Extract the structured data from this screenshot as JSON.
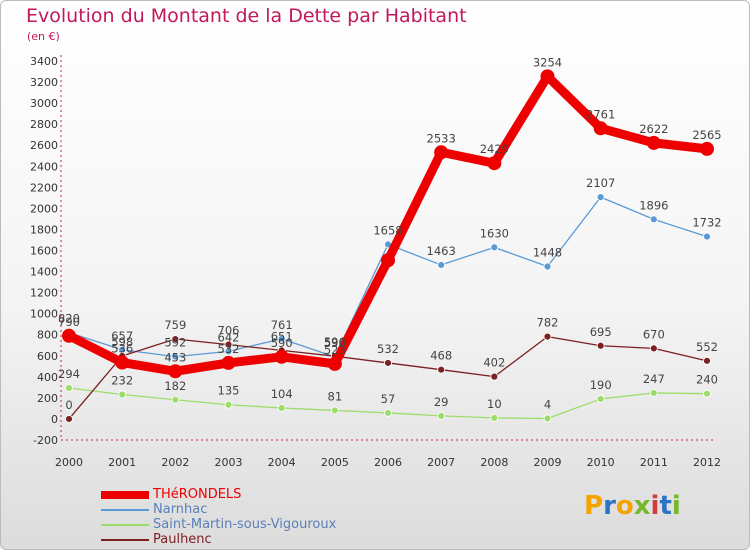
{
  "title": "Evolution du Montant de la Dette par Habitant",
  "subtitle": "(en €)",
  "logo": {
    "text": "Proxiti",
    "colors": [
      "#f4a300",
      "#2b73c4",
      "#f4a300",
      "#77b82a",
      "#d63b3b",
      "#2b73c4",
      "#77b82a"
    ]
  },
  "chart_data": {
    "type": "line",
    "x": [
      2000,
      2001,
      2002,
      2003,
      2004,
      2005,
      2006,
      2007,
      2008,
      2009,
      2010,
      2011,
      2012
    ],
    "ylim": [
      -200,
      3400
    ],
    "yticks": [
      -200,
      0,
      200,
      400,
      600,
      800,
      1000,
      1200,
      1400,
      1600,
      1800,
      2000,
      2200,
      2400,
      2600,
      2800,
      3000,
      3200,
      3400
    ],
    "grid": false,
    "legend_position": "bottom-left",
    "series": [
      {
        "name": "THéRONDELS",
        "color": "#ee0000",
        "values": [
          790,
          536,
          453,
          532,
          590,
          523,
          1507,
          2533,
          2429,
          3254,
          2761,
          2622,
          2565
        ],
        "labels": [
          "790",
          "536",
          "453",
          "532",
          "590",
          "523",
          "",
          "2533",
          "2429",
          "3254",
          "2761",
          "2622",
          "2565"
        ]
      },
      {
        "name": "Narnhac",
        "color": "#5b9bd5",
        "values": [
          820,
          657,
          592,
          642,
          761,
          590,
          1658,
          1463,
          1630,
          1448,
          2107,
          1896,
          1732
        ],
        "labels": [
          "820",
          "657",
          "592",
          "642",
          "761",
          "590",
          "1658",
          "1463",
          "1630",
          "1448",
          "2107",
          "1896",
          "1732"
        ]
      },
      {
        "name": "Saint-Martin-sous-Vigouroux",
        "color": "#9cdd6a",
        "values": [
          294,
          232,
          182,
          135,
          104,
          81,
          57,
          29,
          10,
          4,
          190,
          247,
          240
        ],
        "labels": [
          "294",
          "232",
          "182",
          "135",
          "104",
          "81",
          "57",
          "29",
          "10",
          "4",
          "190",
          "247",
          "240"
        ]
      },
      {
        "name": "Paulhenc",
        "color": "#7b1f22",
        "values": [
          0,
          598,
          759,
          706,
          651,
          596,
          532,
          468,
          402,
          782,
          695,
          670,
          552
        ],
        "labels": [
          "0",
          "598",
          "759",
          "706",
          "651",
          "596",
          "532",
          "468",
          "402",
          "782",
          "695",
          "670",
          "552"
        ]
      }
    ]
  }
}
